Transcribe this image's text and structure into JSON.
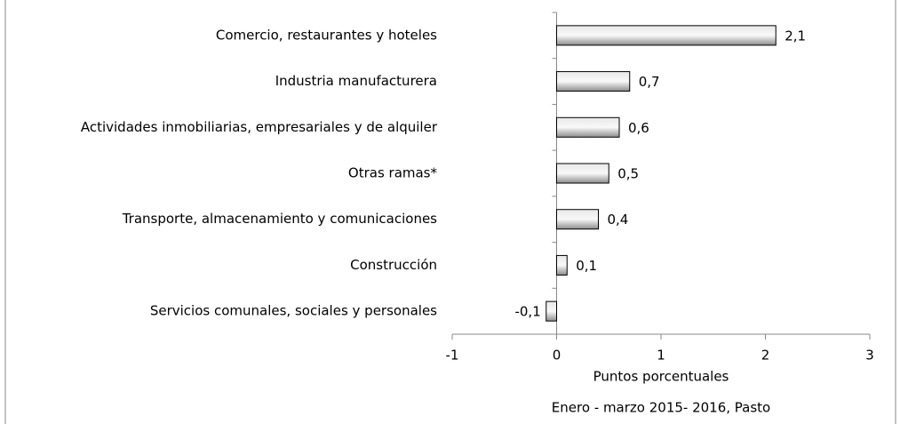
{
  "chart_data": {
    "type": "bar",
    "orientation": "horizontal",
    "categories": [
      "Comercio, restaurantes y hoteles",
      "Industria manufacturera",
      "Actividades inmobiliarias, empresariales y de alquiler",
      "Otras ramas*",
      "Transporte, almacenamiento y comunicaciones",
      "Construcción",
      "Servicios comunales, sociales y personales"
    ],
    "values": [
      2.1,
      0.7,
      0.6,
      0.5,
      0.4,
      0.1,
      -0.1
    ],
    "value_labels": [
      "2,1",
      "0,7",
      "0,6",
      "0,5",
      "0,4",
      "0,1",
      "-0,1"
    ],
    "color": "#b8b8b8",
    "xlim": [
      -1,
      3
    ],
    "xticks": [
      -1,
      0,
      1,
      2,
      3
    ],
    "x_label": "Puntos porcentuales",
    "subtitle": "Enero - marzo 2015- 2016, Pasto"
  }
}
